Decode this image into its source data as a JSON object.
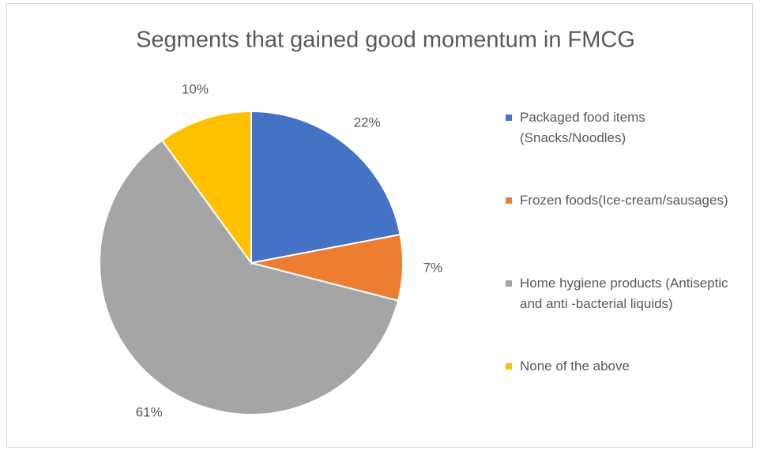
{
  "chart_data": {
    "type": "pie",
    "title": "Segments that gained good momentum in FMCG",
    "categories": [
      "Packaged food items (Snacks/Noodles)",
      "Frozen foods(Ice-cream/sausages)",
      "Home hygiene products (Antiseptic and anti -bacterial liquids)",
      "None of the above"
    ],
    "values": [
      22,
      7,
      61,
      10
    ],
    "value_labels": [
      "22%",
      "7%",
      "61%",
      "10%"
    ],
    "colors": [
      "#4472c4",
      "#ed7d31",
      "#a5a5a5",
      "#ffc000"
    ],
    "legend": "right"
  }
}
